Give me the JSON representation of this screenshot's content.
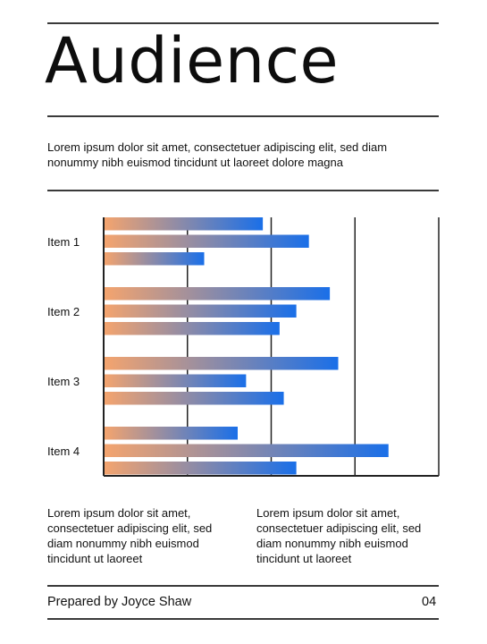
{
  "title": "Audience",
  "intro": "Lorem ipsum dolor sit amet, consectetuer adipiscing elit, sed diam nonummy nibh euismod tincidunt ut laoreet dolore magna",
  "columns": [
    "Lorem ipsum dolor sit amet, consectetuer adipiscing elit, sed diam nonummy nibh euismod tincidunt ut laoreet",
    "Lorem ipsum dolor sit amet, consectetuer adipiscing elit, sed diam nonummy nibh euismod tincidunt ut laoreet"
  ],
  "footer": {
    "prepared_by": "Prepared by Joyce Shaw",
    "page_number": "04"
  },
  "colors": {
    "bar_start": "#f4a46e",
    "bar_end": "#1a6fe8",
    "rule": "#3a3a3a",
    "grid": "#222222"
  },
  "chart_data": {
    "type": "bar",
    "orientation": "horizontal",
    "categories": [
      "Item 1",
      "Item 2",
      "Item 3",
      "Item 4"
    ],
    "series": [
      {
        "values": [
          1.9,
          2.7,
          2.8,
          1.6
        ]
      },
      {
        "values": [
          2.45,
          2.3,
          1.7,
          3.4
        ]
      },
      {
        "values": [
          1.2,
          2.1,
          2.15,
          2.3
        ]
      }
    ],
    "xlim": [
      0,
      4
    ],
    "grid": true,
    "legend": "none"
  }
}
